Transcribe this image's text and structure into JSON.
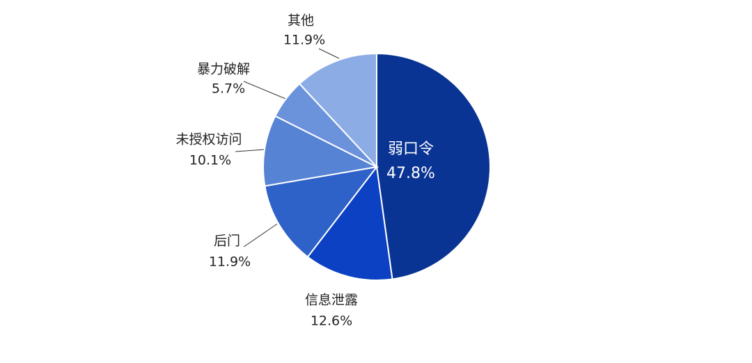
{
  "chart_data": {
    "type": "pie",
    "categories": [
      "弱口令",
      "信息泄露",
      "后门",
      "未授权访问",
      "暴力破解",
      "其他"
    ],
    "values": [
      47.8,
      12.6,
      11.9,
      10.1,
      5.7,
      11.9
    ],
    "value_labels": [
      "47.8%",
      "12.6%",
      "11.9%",
      "10.1%",
      "5.7%",
      "11.9%"
    ],
    "colors": [
      "#0a3493",
      "#0b41c2",
      "#2f62c9",
      "#5683d4",
      "#6b93dc",
      "#8cace6"
    ]
  }
}
